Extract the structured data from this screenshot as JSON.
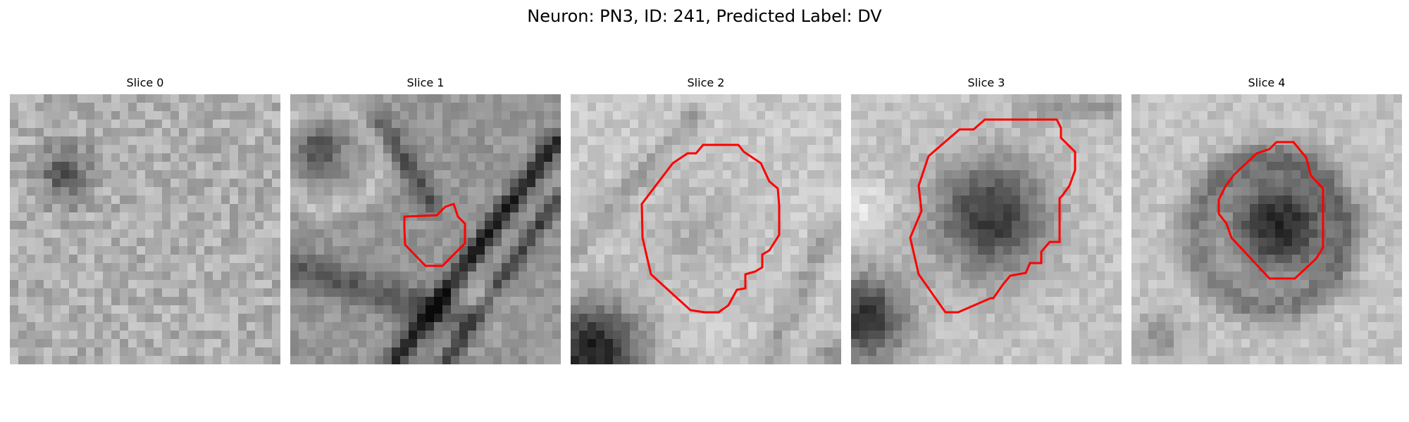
{
  "figure": {
    "title": "Neuron: PN3, ID: 241, Predicted Label: DV",
    "contour_color": "#ff0000"
  },
  "slices": [
    {
      "title": "Slice 0"
    },
    {
      "title": "Slice 1"
    },
    {
      "title": "Slice 2"
    },
    {
      "title": "Slice 3"
    },
    {
      "title": "Slice 4"
    }
  ]
}
